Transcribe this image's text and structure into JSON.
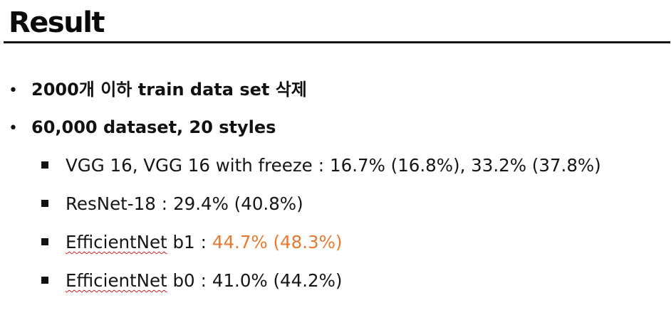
{
  "slide": {
    "title": "Result",
    "bullets": [
      {
        "text": "2000개 이하 train data set 삭제"
      },
      {
        "text": "60,000 dataset, 20 styles"
      }
    ],
    "sub_bullets": [
      {
        "label": "VGG 16, VGG 16 with freeze",
        "sep": ":",
        "value": "16.7% (16.8%), 33.2% (37.8%)"
      },
      {
        "label": "ResNet-18",
        "sep": ":",
        "value": "29.4% (40.8%)"
      },
      {
        "label_spell": "EfficientNet",
        "label_rest": " b1",
        "sep": ":",
        "value": "44.7% (48.3%)"
      },
      {
        "label_spell": "EfficientNet",
        "label_rest": " b0",
        "sep": ":",
        "value": "41.0% (44.2%)"
      }
    ],
    "colors": {
      "text": "#111111",
      "highlight": "#e87a2f",
      "spellcheck_underline": "#d02020"
    }
  }
}
